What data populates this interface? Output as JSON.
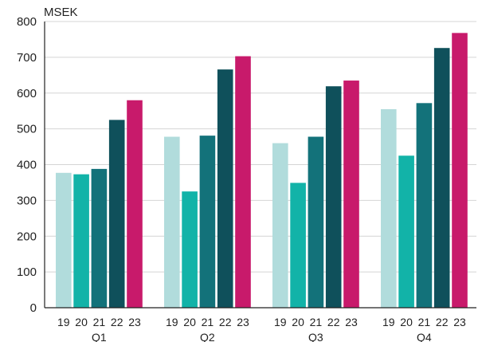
{
  "chart_data": {
    "type": "bar",
    "unit_label": "MSEK",
    "ylim": [
      0,
      800
    ],
    "yticks": [
      0,
      100,
      200,
      300,
      400,
      500,
      600,
      700,
      800
    ],
    "grid": "horizontal",
    "groups": [
      {
        "quarter": "Q1",
        "years": [
          "19",
          "20",
          "21",
          "22",
          "23"
        ],
        "values": [
          377,
          373,
          388,
          525,
          580
        ]
      },
      {
        "quarter": "Q2",
        "years": [
          "19",
          "20",
          "21",
          "22",
          "23"
        ],
        "values": [
          478,
          325,
          481,
          666,
          703
        ]
      },
      {
        "quarter": "Q3",
        "years": [
          "19",
          "20",
          "21",
          "22",
          "23"
        ],
        "values": [
          460,
          349,
          478,
          619,
          635
        ]
      },
      {
        "quarter": "Q4",
        "years": [
          "19",
          "20",
          "21",
          "22",
          "23"
        ],
        "values": [
          555,
          425,
          572,
          726,
          768
        ]
      }
    ],
    "colors": [
      "#b1dcdc",
      "#12b3a8",
      "#13727a",
      "#0f505b",
      "#c81a6b"
    ]
  }
}
